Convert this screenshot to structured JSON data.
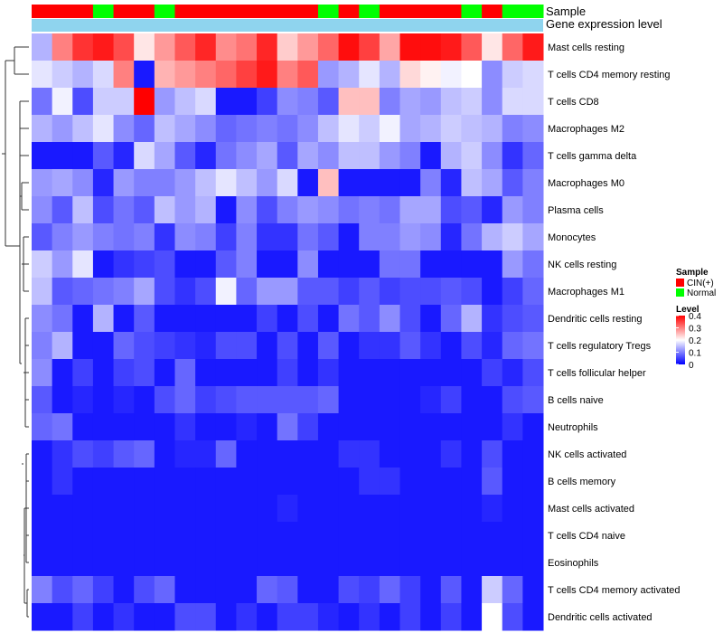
{
  "chart_data": {
    "type": "heatmap",
    "title": "",
    "annotation_labels": [
      "Sample",
      "Gene expression level"
    ],
    "sample_groups": [
      "CIN(+)",
      "CIN(+)",
      "CIN(+)",
      "Normal",
      "CIN(+)",
      "CIN(+)",
      "Normal",
      "CIN(+)",
      "CIN(+)",
      "CIN(+)",
      "CIN(+)",
      "CIN(+)",
      "CIN(+)",
      "CIN(+)",
      "Normal",
      "CIN(+)",
      "Normal",
      "CIN(+)",
      "CIN(+)",
      "CIN(+)",
      "CIN(+)",
      "Normal",
      "CIN(+)",
      "Normal",
      "Normal"
    ],
    "rows": [
      "Mast cells resting",
      "T cells CD4 memory resting",
      "T cells CD8",
      "Macrophages M2",
      "T cells gamma delta",
      "Macrophages M0",
      "Plasma cells",
      "Monocytes",
      "NK cells resting",
      "Macrophages M1",
      "Dendritic cells resting",
      "T cells regulatory  Tregs",
      "T cells follicular helper",
      "B cells naive",
      "Neutrophils",
      "NK cells activated",
      "B cells memory",
      "Mast cells activated",
      "T cells CD4 naive",
      "Eosinophils",
      "T cells CD4 memory activated",
      "Dendritic cells activated"
    ],
    "values": [
      [
        0.14,
        0.3,
        0.36,
        0.38,
        0.34,
        0.22,
        0.28,
        0.33,
        0.37,
        0.29,
        0.31,
        0.37,
        0.24,
        0.28,
        0.32,
        0.39,
        0.35,
        0.27,
        0.39,
        0.39,
        0.38,
        0.33,
        0.22,
        0.32,
        0.38
      ],
      [
        0.18,
        0.16,
        0.14,
        0.17,
        0.3,
        0.02,
        0.26,
        0.28,
        0.3,
        0.32,
        0.35,
        0.38,
        0.3,
        0.33,
        0.12,
        0.14,
        0.18,
        0.14,
        0.23,
        0.21,
        0.19,
        0.2,
        0.11,
        0.16,
        0.17
      ],
      [
        0.09,
        0.19,
        0.06,
        0.16,
        0.16,
        0.4,
        0.12,
        0.15,
        0.17,
        0.02,
        0.02,
        0.05,
        0.11,
        0.1,
        0.07,
        0.25,
        0.25,
        0.1,
        0.13,
        0.12,
        0.15,
        0.16,
        0.11,
        0.17,
        0.17
      ],
      [
        0.14,
        0.12,
        0.15,
        0.18,
        0.11,
        0.08,
        0.15,
        0.13,
        0.11,
        0.08,
        0.09,
        0.1,
        0.09,
        0.11,
        0.15,
        0.18,
        0.16,
        0.19,
        0.13,
        0.14,
        0.16,
        0.15,
        0.14,
        0.1,
        0.11
      ],
      [
        0.02,
        0.02,
        0.02,
        0.07,
        0.03,
        0.17,
        0.13,
        0.07,
        0.03,
        0.09,
        0.11,
        0.13,
        0.07,
        0.13,
        0.11,
        0.15,
        0.15,
        0.12,
        0.1,
        0.02,
        0.14,
        0.16,
        0.11,
        0.04,
        0.08
      ],
      [
        0.12,
        0.13,
        0.11,
        0.03,
        0.12,
        0.1,
        0.1,
        0.12,
        0.15,
        0.18,
        0.15,
        0.12,
        0.17,
        0.02,
        0.25,
        0.02,
        0.02,
        0.02,
        0.02,
        0.1,
        0.03,
        0.15,
        0.13,
        0.07,
        0.1
      ],
      [
        0.11,
        0.07,
        0.15,
        0.06,
        0.09,
        0.07,
        0.15,
        0.12,
        0.14,
        0.02,
        0.11,
        0.06,
        0.1,
        0.12,
        0.11,
        0.09,
        0.1,
        0.09,
        0.13,
        0.13,
        0.06,
        0.07,
        0.03,
        0.12,
        0.1
      ],
      [
        0.07,
        0.1,
        0.12,
        0.1,
        0.09,
        0.1,
        0.04,
        0.11,
        0.1,
        0.05,
        0.1,
        0.04,
        0.04,
        0.09,
        0.07,
        0.02,
        0.1,
        0.1,
        0.12,
        0.11,
        0.03,
        0.09,
        0.14,
        0.16,
        0.13
      ],
      [
        0.16,
        0.12,
        0.18,
        0.02,
        0.04,
        0.05,
        0.06,
        0.02,
        0.02,
        0.07,
        0.1,
        0.02,
        0.02,
        0.11,
        0.02,
        0.02,
        0.02,
        0.09,
        0.09,
        0.02,
        0.02,
        0.02,
        0.02,
        0.12,
        0.09
      ],
      [
        0.15,
        0.07,
        0.08,
        0.09,
        0.1,
        0.13,
        0.06,
        0.04,
        0.06,
        0.19,
        0.08,
        0.12,
        0.12,
        0.07,
        0.07,
        0.05,
        0.07,
        0.05,
        0.06,
        0.06,
        0.07,
        0.06,
        0.02,
        0.05,
        0.08
      ],
      [
        0.11,
        0.09,
        0.02,
        0.14,
        0.02,
        0.07,
        0.02,
        0.02,
        0.02,
        0.02,
        0.02,
        0.05,
        0.02,
        0.06,
        0.02,
        0.09,
        0.07,
        0.11,
        0.06,
        0.02,
        0.08,
        0.14,
        0.04,
        0.06,
        0.07
      ],
      [
        0.1,
        0.14,
        0.02,
        0.02,
        0.08,
        0.06,
        0.05,
        0.04,
        0.03,
        0.06,
        0.06,
        0.02,
        0.06,
        0.02,
        0.07,
        0.02,
        0.04,
        0.04,
        0.07,
        0.04,
        0.02,
        0.06,
        0.03,
        0.08,
        0.09
      ],
      [
        0.11,
        0.02,
        0.05,
        0.02,
        0.05,
        0.06,
        0.02,
        0.08,
        0.02,
        0.02,
        0.02,
        0.02,
        0.05,
        0.02,
        0.04,
        0.02,
        0.02,
        0.02,
        0.02,
        0.02,
        0.02,
        0.02,
        0.05,
        0.03,
        0.06
      ],
      [
        0.07,
        0.02,
        0.03,
        0.02,
        0.03,
        0.02,
        0.06,
        0.08,
        0.05,
        0.06,
        0.07,
        0.07,
        0.07,
        0.07,
        0.08,
        0.02,
        0.02,
        0.02,
        0.02,
        0.03,
        0.05,
        0.02,
        0.02,
        0.06,
        0.07
      ],
      [
        0.08,
        0.09,
        0.02,
        0.02,
        0.02,
        0.02,
        0.02,
        0.04,
        0.02,
        0.02,
        0.03,
        0.02,
        0.09,
        0.05,
        0.02,
        0.02,
        0.02,
        0.02,
        0.02,
        0.02,
        0.02,
        0.02,
        0.02,
        0.04,
        0.02
      ],
      [
        0.02,
        0.04,
        0.06,
        0.05,
        0.07,
        0.08,
        0.02,
        0.03,
        0.03,
        0.08,
        0.02,
        0.02,
        0.02,
        0.02,
        0.02,
        0.04,
        0.04,
        0.02,
        0.02,
        0.02,
        0.04,
        0.02,
        0.06,
        0.02,
        0.02
      ],
      [
        0.02,
        0.04,
        0.02,
        0.02,
        0.02,
        0.02,
        0.02,
        0.02,
        0.02,
        0.02,
        0.02,
        0.02,
        0.02,
        0.02,
        0.02,
        0.02,
        0.04,
        0.04,
        0.02,
        0.02,
        0.02,
        0.02,
        0.07,
        0.02,
        0.02
      ],
      [
        0.02,
        0.02,
        0.02,
        0.02,
        0.02,
        0.02,
        0.02,
        0.02,
        0.02,
        0.02,
        0.02,
        0.02,
        0.03,
        0.02,
        0.02,
        0.02,
        0.02,
        0.02,
        0.02,
        0.02,
        0.02,
        0.02,
        0.03,
        0.02,
        0.02
      ],
      [
        0.02,
        0.02,
        0.02,
        0.02,
        0.02,
        0.02,
        0.02,
        0.02,
        0.02,
        0.02,
        0.02,
        0.02,
        0.02,
        0.02,
        0.02,
        0.02,
        0.02,
        0.02,
        0.02,
        0.02,
        0.02,
        0.02,
        0.02,
        0.02,
        0.02
      ],
      [
        0.02,
        0.02,
        0.02,
        0.02,
        0.02,
        0.02,
        0.02,
        0.02,
        0.02,
        0.02,
        0.02,
        0.02,
        0.02,
        0.02,
        0.02,
        0.02,
        0.02,
        0.02,
        0.02,
        0.02,
        0.02,
        0.02,
        0.02,
        0.02,
        0.02
      ],
      [
        0.1,
        0.06,
        0.08,
        0.05,
        0.02,
        0.06,
        0.08,
        0.02,
        0.02,
        0.02,
        0.02,
        0.08,
        0.07,
        0.02,
        0.02,
        0.06,
        0.05,
        0.08,
        0.05,
        0.02,
        0.07,
        0.02,
        0.16,
        0.08,
        0.02
      ],
      [
        0.02,
        0.02,
        0.05,
        0.02,
        0.04,
        0.02,
        0.02,
        0.06,
        0.06,
        0.02,
        0.04,
        0.02,
        0.05,
        0.05,
        0.03,
        0.02,
        0.04,
        0.02,
        0.05,
        0.02,
        0.05,
        0.02,
        0.2,
        0.06,
        0.02
      ]
    ],
    "legend": {
      "sample_title": "Sample",
      "groups": [
        {
          "name": "CIN(+)",
          "color": "#ff0000"
        },
        {
          "name": "Normal",
          "color": "#00ff00"
        }
      ],
      "level_title": "Level",
      "scale_ticks": [
        "0.4",
        "0.3",
        "0.2",
        "0.1",
        "0"
      ],
      "scale_min": 0,
      "scale_max": 0.4
    },
    "gene_expression_color": "#8fd4ee"
  }
}
